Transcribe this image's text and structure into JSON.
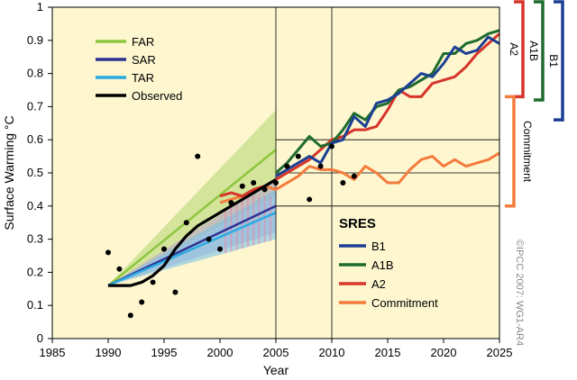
{
  "chart_data": {
    "type": "line",
    "xlabel": "Year",
    "ylabel": "Surface Warming °C",
    "xlim": [
      1985,
      2025
    ],
    "ylim": [
      0,
      1
    ],
    "xticks": [
      "1985",
      "1990",
      "1995",
      "2000",
      "2005",
      "2010",
      "2015",
      "2020",
      "2025"
    ],
    "yticks": [
      "0",
      "0.1",
      "0.2",
      "0.3",
      "0.4",
      "0.5",
      "0.6",
      "0.7",
      "0.8",
      "0.9",
      "1"
    ],
    "reference_lines_x": [
      2005,
      2010
    ],
    "reference_lines_y": [
      0.4,
      0.5,
      0.6
    ],
    "legend_assessments": [
      {
        "name": "FAR",
        "color": "#8dc63f"
      },
      {
        "name": "SAR",
        "color": "#2e3192"
      },
      {
        "name": "TAR",
        "color": "#29abe2"
      },
      {
        "name": "Observed",
        "color": "#000000"
      }
    ],
    "legend_sres_title": "SRES",
    "legend_sres": [
      {
        "name": "B1",
        "color": "#1c3f95"
      },
      {
        "name": "A1B",
        "color": "#1e6b2e"
      },
      {
        "name": "A2",
        "color": "#d7342a"
      },
      {
        "name": "Commitment",
        "color": "#f47b3c"
      }
    ],
    "projection_ranges": [
      {
        "name": "FAR",
        "color": "#c6dd8a",
        "x": [
          1990,
          2005
        ],
        "upper": [
          0.16,
          0.69
        ],
        "lower": [
          0.16,
          0.43
        ],
        "central": [
          0.16,
          0.57
        ]
      },
      {
        "name": "SAR",
        "color": "#b9a7cf",
        "x": [
          1990,
          2005
        ],
        "upper": [
          0.16,
          0.48
        ],
        "lower": [
          0.16,
          0.32
        ],
        "central": [
          0.16,
          0.4
        ]
      },
      {
        "name": "TAR",
        "color": "#7cc3e6",
        "x": [
          1990,
          2005
        ],
        "upper": [
          0.16,
          0.45
        ],
        "lower": [
          0.16,
          0.3
        ],
        "central": [
          0.16,
          0.38
        ]
      }
    ],
    "observed_smoothed": {
      "x": [
        1990,
        1991,
        1992,
        1993,
        1994,
        1995,
        1996,
        1997,
        1998,
        1999,
        2000,
        2001,
        2002,
        2003,
        2004,
        2005
      ],
      "y": [
        0.16,
        0.16,
        0.16,
        0.17,
        0.19,
        0.22,
        0.27,
        0.31,
        0.34,
        0.36,
        0.38,
        0.4,
        0.42,
        0.44,
        0.46,
        0.48
      ]
    },
    "observed_annual": {
      "x": [
        1990,
        1991,
        1992,
        1993,
        1994,
        1995,
        1996,
        1997,
        1998,
        1999,
        2000,
        2001,
        2002,
        2003,
        2004,
        2005,
        2006,
        2007,
        2008,
        2009,
        2010,
        2011,
        2012
      ],
      "y": [
        0.26,
        0.21,
        0.07,
        0.11,
        0.17,
        0.27,
        0.14,
        0.35,
        0.55,
        0.3,
        0.27,
        0.41,
        0.46,
        0.47,
        0.45,
        0.47,
        0.52,
        0.55,
        0.42,
        0.52,
        0.58,
        0.47,
        0.49
      ]
    },
    "series": [
      {
        "name": "B1",
        "color": "#1c3f95",
        "x": [
          2005,
          2006,
          2007,
          2008,
          2009,
          2010,
          2011,
          2012,
          2013,
          2014,
          2015,
          2016,
          2017,
          2018,
          2019,
          2020,
          2021,
          2022,
          2023,
          2024,
          2025
        ],
        "y": [
          0.49,
          0.51,
          0.53,
          0.55,
          0.53,
          0.59,
          0.6,
          0.67,
          0.64,
          0.71,
          0.72,
          0.74,
          0.77,
          0.8,
          0.79,
          0.83,
          0.88,
          0.86,
          0.87,
          0.91,
          0.89
        ]
      },
      {
        "name": "A1B",
        "color": "#1e6b2e",
        "x": [
          2005,
          2006,
          2007,
          2008,
          2009,
          2010,
          2011,
          2012,
          2013,
          2014,
          2015,
          2016,
          2017,
          2018,
          2019,
          2020,
          2021,
          2022,
          2023,
          2024,
          2025
        ],
        "y": [
          0.5,
          0.53,
          0.57,
          0.61,
          0.58,
          0.59,
          0.63,
          0.68,
          0.66,
          0.7,
          0.71,
          0.75,
          0.76,
          0.78,
          0.8,
          0.86,
          0.86,
          0.89,
          0.9,
          0.92,
          0.93
        ]
      },
      {
        "name": "A2",
        "color": "#d7342a",
        "x": [
          2000,
          2001,
          2002,
          2003,
          2004,
          2005,
          2006,
          2007,
          2008,
          2009,
          2010,
          2011,
          2012,
          2013,
          2014,
          2015,
          2016,
          2017,
          2018,
          2019,
          2020,
          2021,
          2022,
          2023,
          2024,
          2025
        ],
        "y": [
          0.43,
          0.44,
          0.43,
          0.45,
          0.46,
          0.48,
          0.5,
          0.52,
          0.54,
          0.57,
          0.6,
          0.61,
          0.63,
          0.63,
          0.64,
          0.69,
          0.75,
          0.73,
          0.73,
          0.77,
          0.78,
          0.79,
          0.82,
          0.86,
          0.89,
          0.92
        ]
      },
      {
        "name": "Commitment",
        "color": "#f47b3c",
        "x": [
          2000,
          2001,
          2002,
          2003,
          2004,
          2005,
          2006,
          2007,
          2008,
          2009,
          2010,
          2011,
          2012,
          2013,
          2014,
          2015,
          2016,
          2017,
          2018,
          2019,
          2020,
          2021,
          2022,
          2023,
          2024,
          2025
        ],
        "y": [
          0.41,
          0.42,
          0.43,
          0.44,
          0.46,
          0.45,
          0.47,
          0.49,
          0.52,
          0.51,
          0.51,
          0.5,
          0.48,
          0.52,
          0.5,
          0.47,
          0.47,
          0.51,
          0.54,
          0.55,
          0.52,
          0.54,
          0.52,
          0.53,
          0.54,
          0.56
        ]
      }
    ],
    "side_brackets": [
      {
        "name": "A2",
        "color": "#d7342a",
        "y_range": [
          0.73,
          1.0
        ]
      },
      {
        "name": "A1B",
        "color": "#1e6b2e",
        "y_range": [
          0.72,
          1.0
        ]
      },
      {
        "name": "B1",
        "color": "#1c3f95",
        "y_range": [
          0.66,
          1.0
        ]
      },
      {
        "name": "Commitment",
        "color": "#f47b3c",
        "y_range": [
          0.4,
          0.73
        ]
      }
    ],
    "credit": "©IPCC  2007: WG1-AR4"
  }
}
